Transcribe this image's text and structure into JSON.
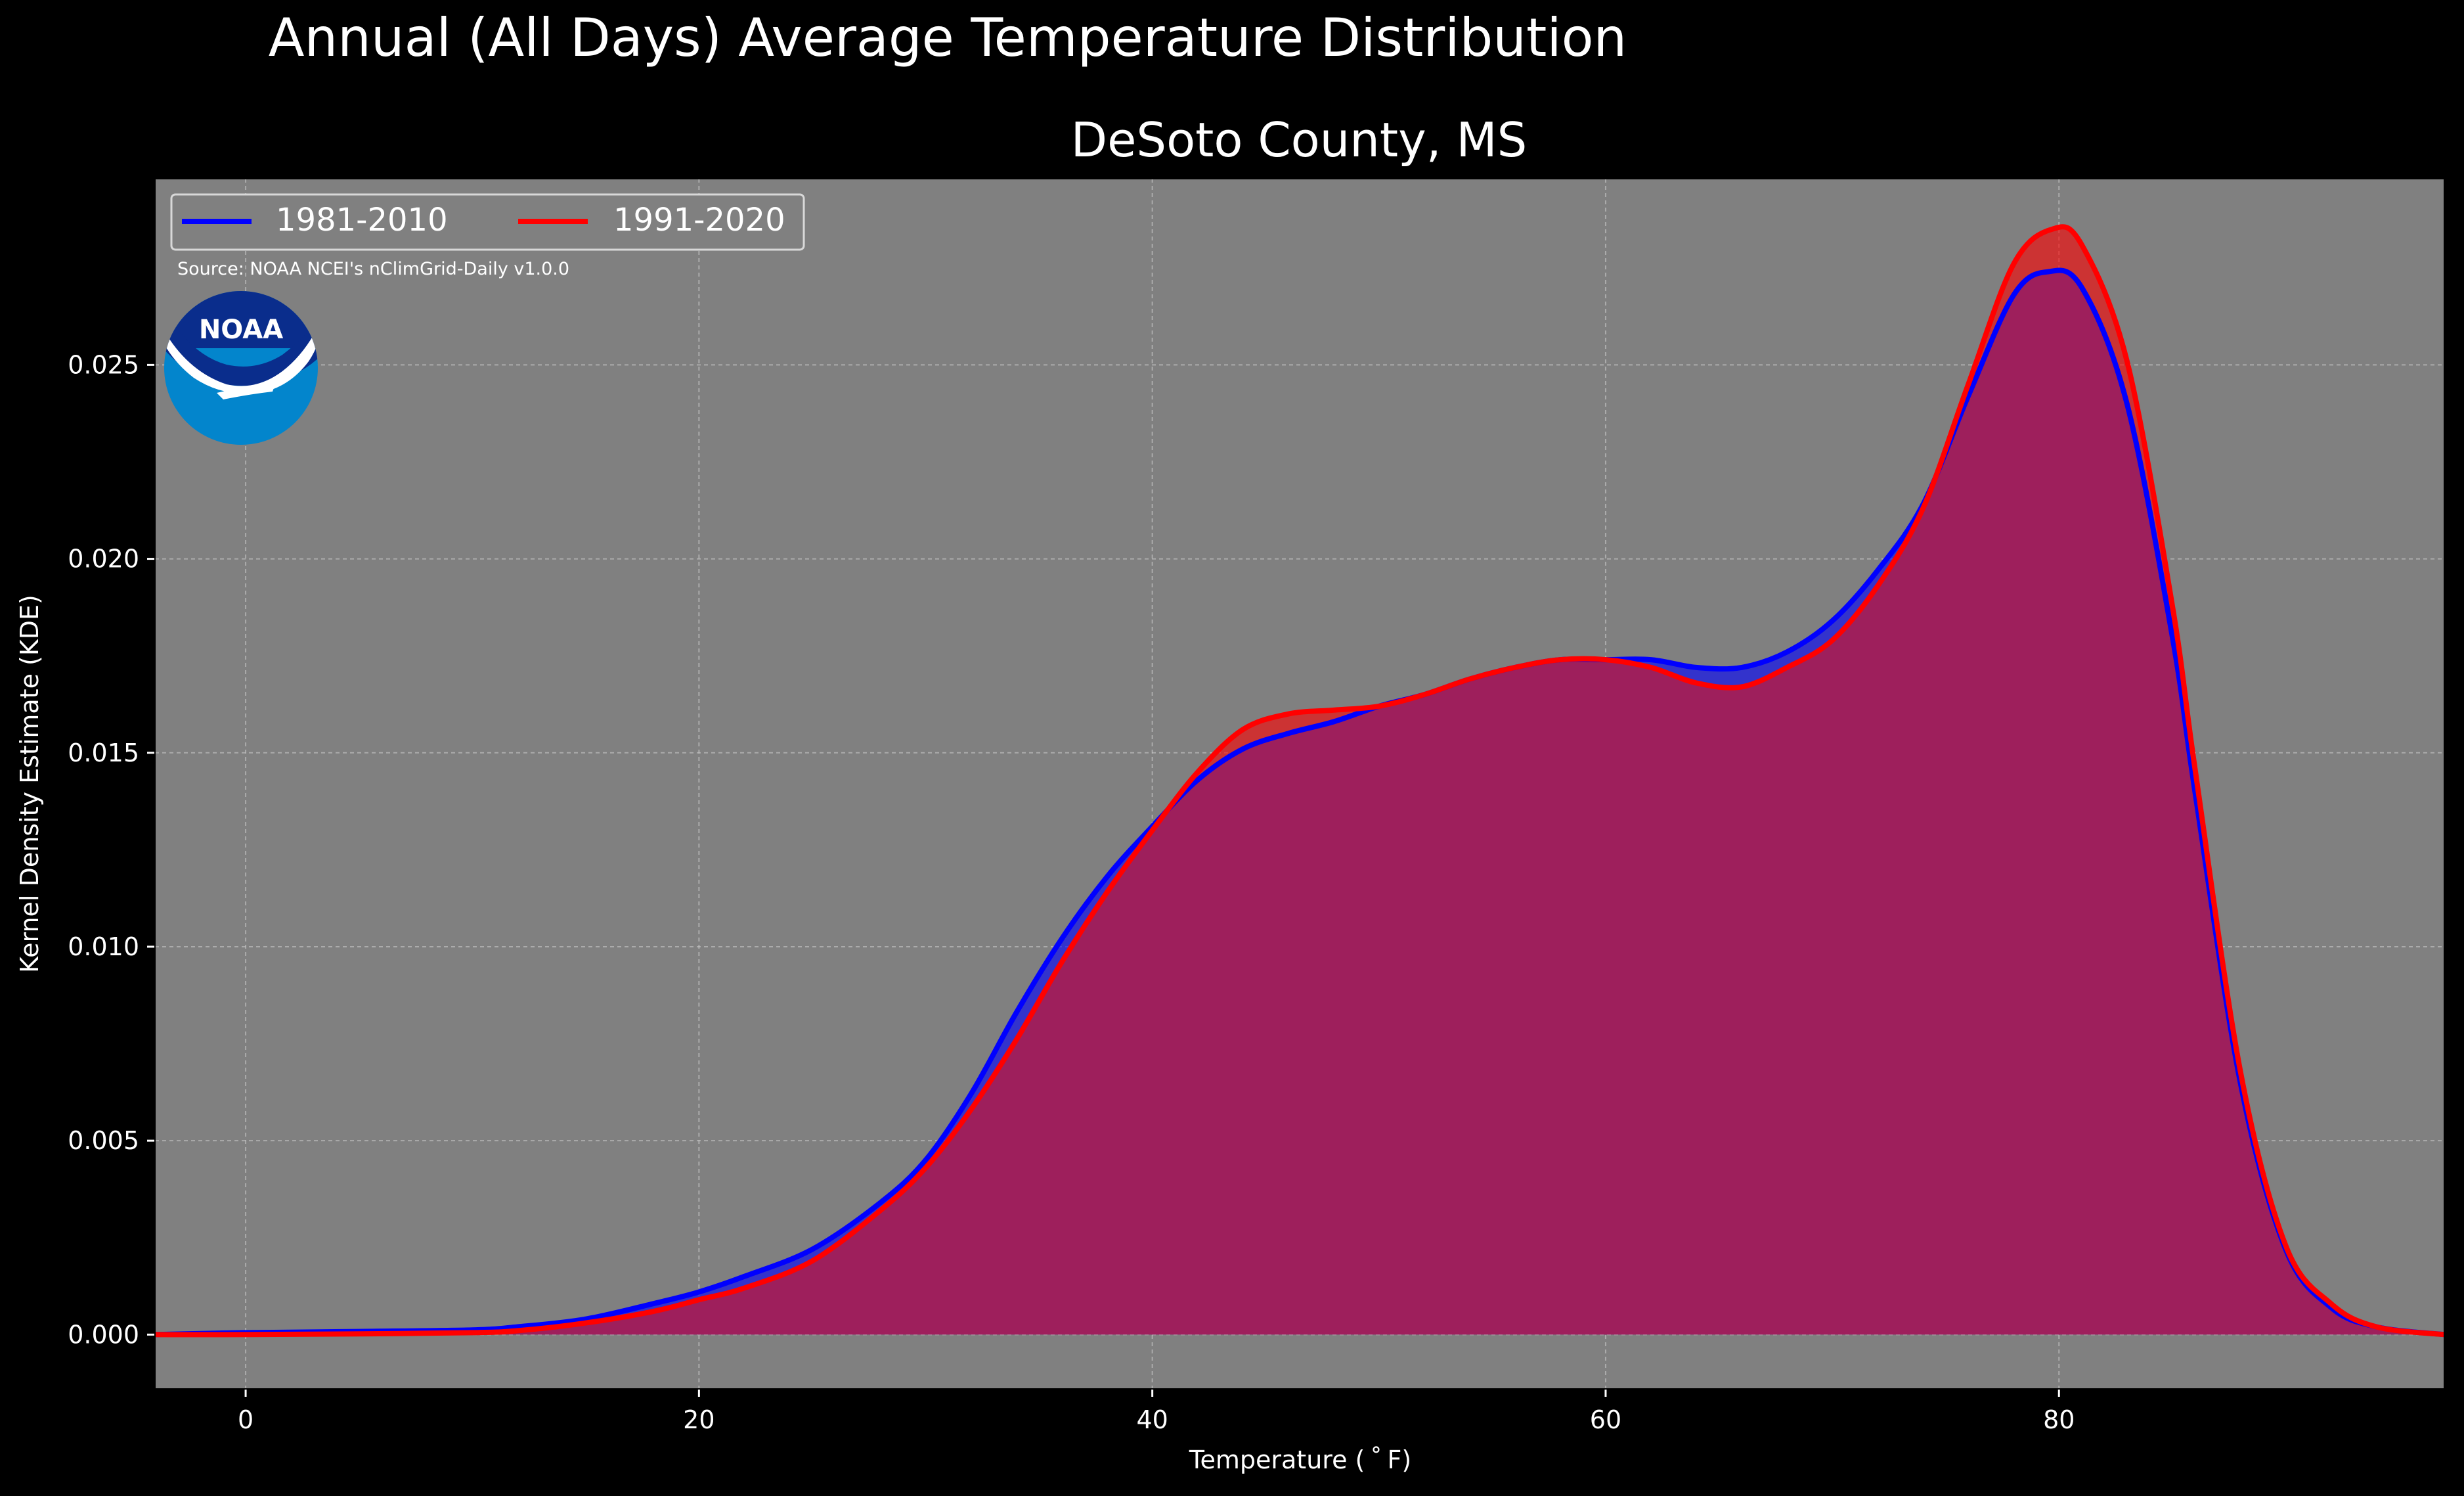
{
  "figure": {
    "suptitle": "Annual (All Days) Average Temperature Distribution",
    "title": "DeSoto County, MS",
    "source_note": "Source: NOAA NCEI's nClimGrid-Daily v1.0.0",
    "logo_text": "NOAA"
  },
  "colors": {
    "figure_bg": "#000000",
    "plot_bg": "#808080",
    "series_1981": "#0000ff",
    "series_1991": "#ff0000",
    "overlap_fill": "#9e1f5c",
    "logo_dark": "#0a2d8c",
    "logo_light": "#0385cc"
  },
  "chart_data": {
    "type": "area",
    "xlabel": "Temperature ($^\\circ$F)",
    "xlabel_display": "Temperature ( ˚ F)",
    "ylabel": "Kernel Density Estimate (KDE)",
    "xlim": [
      -4,
      97
    ],
    "ylim": [
      -0.0014,
      0.0298
    ],
    "xticks": [
      0,
      20,
      40,
      60,
      80
    ],
    "xtick_labels": [
      "0",
      "20",
      "40",
      "60",
      "80"
    ],
    "yticks": [
      0.0,
      0.005,
      0.01,
      0.015,
      0.02,
      0.025
    ],
    "ytick_labels": [
      "0.000",
      "0.005",
      "0.010",
      "0.015",
      "0.020",
      "0.025"
    ],
    "grid": true,
    "legend_position": "top-left",
    "series": [
      {
        "name": "1981-2010",
        "color": "#0000ff",
        "points": [
          [
            -4,
            0
          ],
          [
            0,
            5e-05
          ],
          [
            5,
            8e-05
          ],
          [
            10,
            0.00012
          ],
          [
            12,
            0.0002
          ],
          [
            15,
            0.0004
          ],
          [
            18,
            0.0008
          ],
          [
            20,
            0.0011
          ],
          [
            22,
            0.0015
          ],
          [
            25,
            0.0022
          ],
          [
            28,
            0.0034
          ],
          [
            30,
            0.0045
          ],
          [
            32,
            0.0062
          ],
          [
            34,
            0.0083
          ],
          [
            36,
            0.0102
          ],
          [
            38,
            0.0118
          ],
          [
            40,
            0.0131
          ],
          [
            42,
            0.0143
          ],
          [
            44,
            0.0151
          ],
          [
            46,
            0.0155
          ],
          [
            48,
            0.0158
          ],
          [
            50,
            0.0162
          ],
          [
            52,
            0.0165
          ],
          [
            54,
            0.0169
          ],
          [
            56,
            0.0172
          ],
          [
            58,
            0.0174
          ],
          [
            60,
            0.0174
          ],
          [
            62,
            0.0174
          ],
          [
            64,
            0.0172
          ],
          [
            66,
            0.0172
          ],
          [
            68,
            0.0176
          ],
          [
            70,
            0.0184
          ],
          [
            72,
            0.0197
          ],
          [
            74,
            0.0214
          ],
          [
            76,
            0.0242
          ],
          [
            78,
            0.0268
          ],
          [
            79.5,
            0.0274
          ],
          [
            81,
            0.027
          ],
          [
            83,
            0.024
          ],
          [
            85,
            0.018
          ],
          [
            86,
            0.014
          ],
          [
            88,
            0.0065
          ],
          [
            90,
            0.0022
          ],
          [
            92,
            0.0007
          ],
          [
            94,
            0.0002
          ],
          [
            97,
            0
          ]
        ]
      },
      {
        "name": "1991-2020",
        "color": "#ff0000",
        "points": [
          [
            -4,
            0
          ],
          [
            0,
            0
          ],
          [
            5,
            2e-05
          ],
          [
            10,
            5e-05
          ],
          [
            12,
            0.0001
          ],
          [
            15,
            0.0003
          ],
          [
            18,
            0.0006
          ],
          [
            20,
            0.0009
          ],
          [
            22,
            0.0012
          ],
          [
            25,
            0.0019
          ],
          [
            28,
            0.0032
          ],
          [
            30,
            0.0043
          ],
          [
            32,
            0.0058
          ],
          [
            34,
            0.0076
          ],
          [
            36,
            0.0096
          ],
          [
            38,
            0.0114
          ],
          [
            40,
            0.013
          ],
          [
            42,
            0.0145
          ],
          [
            44,
            0.0156
          ],
          [
            46,
            0.016
          ],
          [
            48,
            0.0161
          ],
          [
            50,
            0.0162
          ],
          [
            52,
            0.0165
          ],
          [
            54,
            0.0169
          ],
          [
            56,
            0.0172
          ],
          [
            58,
            0.0174
          ],
          [
            60,
            0.0174
          ],
          [
            62,
            0.0172
          ],
          [
            64,
            0.0168
          ],
          [
            66,
            0.0167
          ],
          [
            68,
            0.0172
          ],
          [
            70,
            0.0179
          ],
          [
            72,
            0.0193
          ],
          [
            74,
            0.0213
          ],
          [
            76,
            0.0245
          ],
          [
            78,
            0.0276
          ],
          [
            79.7,
            0.0285
          ],
          [
            81,
            0.0281
          ],
          [
            83,
            0.0251
          ],
          [
            85,
            0.0188
          ],
          [
            86,
            0.0146
          ],
          [
            88,
            0.0068
          ],
          [
            90,
            0.0023
          ],
          [
            92,
            0.0008
          ],
          [
            94,
            0.0002
          ],
          [
            97,
            0
          ]
        ]
      }
    ]
  }
}
